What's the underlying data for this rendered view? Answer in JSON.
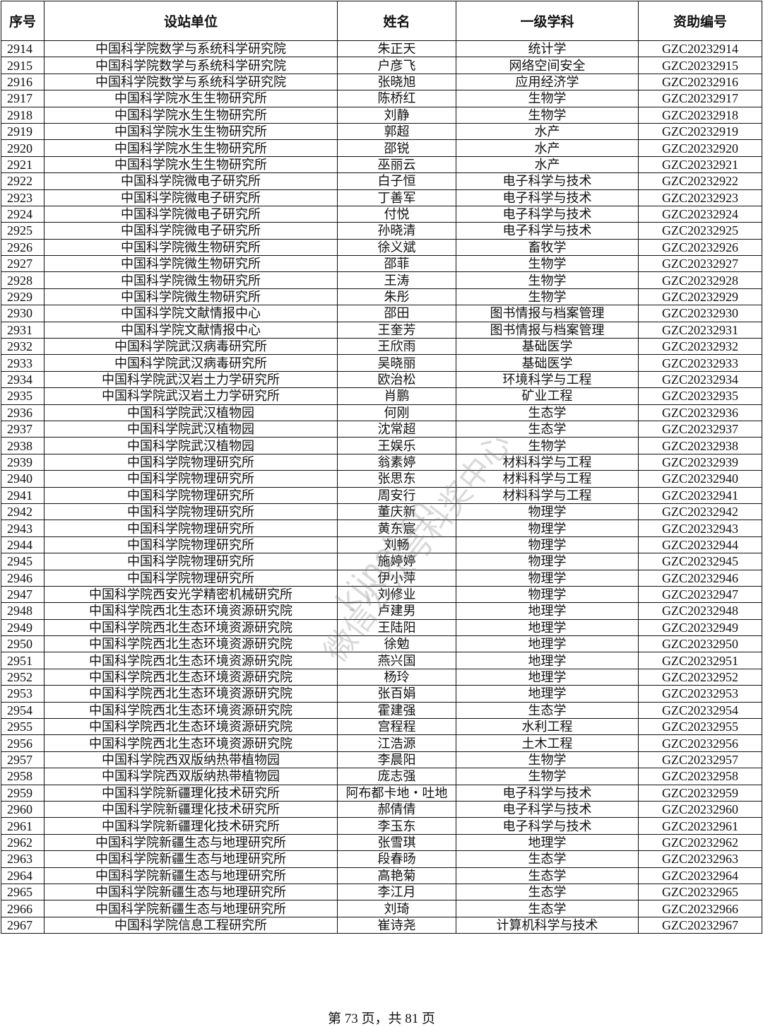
{
  "table": {
    "headers": [
      "序号",
      "设站单位",
      "姓名",
      "一级学科",
      "资助编号"
    ],
    "rows": [
      [
        "2914",
        "中国科学院数学与系统科学研究院",
        "朱正天",
        "统计学",
        "GZC20232914"
      ],
      [
        "2915",
        "中国科学院数学与系统科学研究院",
        "户彦飞",
        "网络空间安全",
        "GZC20232915"
      ],
      [
        "2916",
        "中国科学院数学与系统科学研究院",
        "张晓旭",
        "应用经济学",
        "GZC20232916"
      ],
      [
        "2917",
        "中国科学院水生生物研究所",
        "陈桥红",
        "生物学",
        "GZC20232917"
      ],
      [
        "2918",
        "中国科学院水生生物研究所",
        "刘静",
        "生物学",
        "GZC20232918"
      ],
      [
        "2919",
        "中国科学院水生生物研究所",
        "郭超",
        "水产",
        "GZC20232919"
      ],
      [
        "2920",
        "中国科学院水生生物研究所",
        "邵锐",
        "水产",
        "GZC20232920"
      ],
      [
        "2921",
        "中国科学院水生生物研究所",
        "巫丽云",
        "水产",
        "GZC20232921"
      ],
      [
        "2922",
        "中国科学院微电子研究所",
        "白子恒",
        "电子科学与技术",
        "GZC20232922"
      ],
      [
        "2923",
        "中国科学院微电子研究所",
        "丁善军",
        "电子科学与技术",
        "GZC20232923"
      ],
      [
        "2924",
        "中国科学院微电子研究所",
        "付悦",
        "电子科学与技术",
        "GZC20232924"
      ],
      [
        "2925",
        "中国科学院微电子研究所",
        "孙晓清",
        "电子科学与技术",
        "GZC20232925"
      ],
      [
        "2926",
        "中国科学院微生物研究所",
        "徐义斌",
        "畜牧学",
        "GZC20232926"
      ],
      [
        "2927",
        "中国科学院微生物研究所",
        "邵菲",
        "生物学",
        "GZC20232927"
      ],
      [
        "2928",
        "中国科学院微生物研究所",
        "王涛",
        "生物学",
        "GZC20232928"
      ],
      [
        "2929",
        "中国科学院微生物研究所",
        "朱彤",
        "生物学",
        "GZC20232929"
      ],
      [
        "2930",
        "中国科学院文献情报中心",
        "邵田",
        "图书情报与档案管理",
        "GZC20232930"
      ],
      [
        "2931",
        "中国科学院文献情报中心",
        "王奎芳",
        "图书情报与档案管理",
        "GZC20232931"
      ],
      [
        "2932",
        "中国科学院武汉病毒研究所",
        "王欣雨",
        "基础医学",
        "GZC20232932"
      ],
      [
        "2933",
        "中国科学院武汉病毒研究所",
        "吴晓丽",
        "基础医学",
        "GZC20232933"
      ],
      [
        "2934",
        "中国科学院武汉岩土力学研究所",
        "欧治松",
        "环境科学与工程",
        "GZC20232934"
      ],
      [
        "2935",
        "中国科学院武汉岩土力学研究所",
        "肖鹏",
        "矿业工程",
        "GZC20232935"
      ],
      [
        "2936",
        "中国科学院武汉植物园",
        "何刚",
        "生态学",
        "GZC20232936"
      ],
      [
        "2937",
        "中国科学院武汉植物园",
        "沈常超",
        "生态学",
        "GZC20232937"
      ],
      [
        "2938",
        "中国科学院武汉植物园",
        "王娱乐",
        "生物学",
        "GZC20232938"
      ],
      [
        "2939",
        "中国科学院物理研究所",
        "翁素婷",
        "材料科学与工程",
        "GZC20232939"
      ],
      [
        "2940",
        "中国科学院物理研究所",
        "张思东",
        "材料科学与工程",
        "GZC20232940"
      ],
      [
        "2941",
        "中国科学院物理研究所",
        "周安行",
        "材料科学与工程",
        "GZC20232941"
      ],
      [
        "2942",
        "中国科学院物理研究所",
        "董庆新",
        "物理学",
        "GZC20232942"
      ],
      [
        "2943",
        "中国科学院物理研究所",
        "黄东宸",
        "物理学",
        "GZC20232943"
      ],
      [
        "2944",
        "中国科学院物理研究所",
        "刘畅",
        "物理学",
        "GZC20232944"
      ],
      [
        "2945",
        "中国科学院物理研究所",
        "施婷婷",
        "物理学",
        "GZC20232945"
      ],
      [
        "2946",
        "中国科学院物理研究所",
        "伊小萍",
        "物理学",
        "GZC20232946"
      ],
      [
        "2947",
        "中国科学院西安光学精密机械研究所",
        "刘修业",
        "物理学",
        "GZC20232947"
      ],
      [
        "2948",
        "中国科学院西北生态环境资源研究院",
        "卢建男",
        "地理学",
        "GZC20232948"
      ],
      [
        "2949",
        "中国科学院西北生态环境资源研究院",
        "王陆阳",
        "地理学",
        "GZC20232949"
      ],
      [
        "2950",
        "中国科学院西北生态环境资源研究院",
        "徐勉",
        "地理学",
        "GZC20232950"
      ],
      [
        "2951",
        "中国科学院西北生态环境资源研究院",
        "燕兴国",
        "地理学",
        "GZC20232951"
      ],
      [
        "2952",
        "中国科学院西北生态环境资源研究院",
        "杨玲",
        "地理学",
        "GZC20232952"
      ],
      [
        "2953",
        "中国科学院西北生态环境资源研究院",
        "张百娟",
        "地理学",
        "GZC20232953"
      ],
      [
        "2954",
        "中国科学院西北生态环境资源研究院",
        "霍建强",
        "生态学",
        "GZC20232954"
      ],
      [
        "2955",
        "中国科学院西北生态环境资源研究院",
        "宫程程",
        "水利工程",
        "GZC20232955"
      ],
      [
        "2956",
        "中国科学院西北生态环境资源研究院",
        "江浩源",
        "土木工程",
        "GZC20232956"
      ],
      [
        "2957",
        "中国科学院西双版纳热带植物园",
        "李晨阳",
        "生物学",
        "GZC20232957"
      ],
      [
        "2958",
        "中国科学院西双版纳热带植物园",
        "庞志强",
        "生物学",
        "GZC20232958"
      ],
      [
        "2959",
        "中国科学院新疆理化技术研究所",
        "阿布都卡地・吐地",
        "电子科学与技术",
        "GZC20232959"
      ],
      [
        "2960",
        "中国科学院新疆理化技术研究所",
        "郝倩倩",
        "电子科学与技术",
        "GZC20232960"
      ],
      [
        "2961",
        "中国科学院新疆理化技术研究所",
        "李玉东",
        "电子科学与技术",
        "GZC20232961"
      ],
      [
        "2962",
        "中国科学院新疆生态与地理研究所",
        "张雪琪",
        "地理学",
        "GZC20232962"
      ],
      [
        "2963",
        "中国科学院新疆生态与地理研究所",
        "段春旸",
        "生态学",
        "GZC20232963"
      ],
      [
        "2964",
        "中国科学院新疆生态与地理研究所",
        "高艳菊",
        "生态学",
        "GZC20232964"
      ],
      [
        "2965",
        "中国科学院新疆生态与地理研究所",
        "李江月",
        "生态学",
        "GZC20232965"
      ],
      [
        "2966",
        "中国科学院新疆生态与地理研究所",
        "刘琦",
        "生态学",
        "GZC20232966"
      ],
      [
        "2967",
        "中国科学院信息工程研究所",
        "崔诗尧",
        "计算机科学与技术",
        "GZC20232967"
      ]
    ]
  },
  "watermark": {
    "line1": "微信公众号科奖中心",
    "line2": "kjjnet.cn"
  },
  "footer": {
    "page_text": "第 73 页，共 81 页"
  }
}
